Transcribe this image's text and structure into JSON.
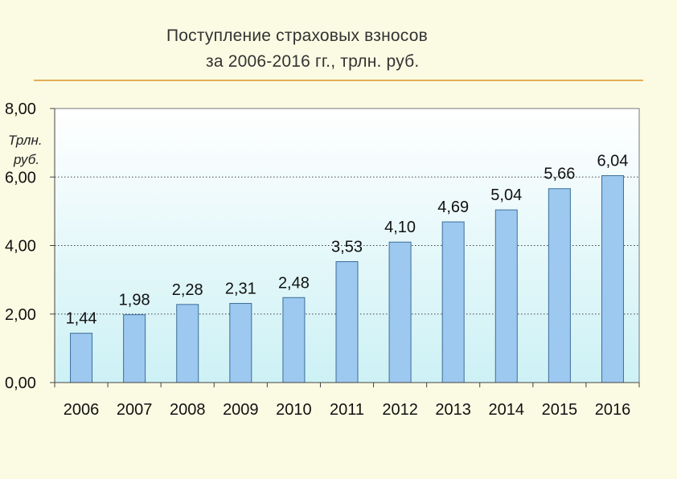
{
  "slide": {
    "title_line1": "Поступление страховых взносов",
    "title_line2": "за 2006-2016 гг., трлн. руб.",
    "unit_line1": "Трлн.",
    "unit_line2": "руб."
  },
  "colors": {
    "bar_fill": "#9dc8f0",
    "bar_stroke": "#3d6e98",
    "plot_top": "#ffffff",
    "plot_bottom": "#cdf1f5",
    "rule": "#e4ad55",
    "background": "#fbfbe4"
  },
  "chart_data": {
    "type": "bar",
    "title": "Поступление страховых взносов за 2006-2016 гг., трлн. руб.",
    "ylabel": "Трлн. руб.",
    "xlabel": "",
    "categories": [
      "2006",
      "2007",
      "2008",
      "2009",
      "2010",
      "2011",
      "2012",
      "2013",
      "2014",
      "2015",
      "2016"
    ],
    "values": [
      1.44,
      1.98,
      2.28,
      2.31,
      2.48,
      3.53,
      4.1,
      4.69,
      5.04,
      5.66,
      6.04
    ],
    "value_labels": [
      "1,44",
      "1,98",
      "2,28",
      "2,31",
      "2,48",
      "3,53",
      "4,10",
      "4,69",
      "5,04",
      "5,66",
      "6,04"
    ],
    "ylim": [
      0,
      8
    ],
    "yticks": [
      0,
      2,
      4,
      6,
      8
    ],
    "ytick_labels": [
      "0,00",
      "2,00",
      "4,00",
      "6,00",
      "8,00"
    ],
    "grid": "horizontal-dotted",
    "legend": "none"
  }
}
